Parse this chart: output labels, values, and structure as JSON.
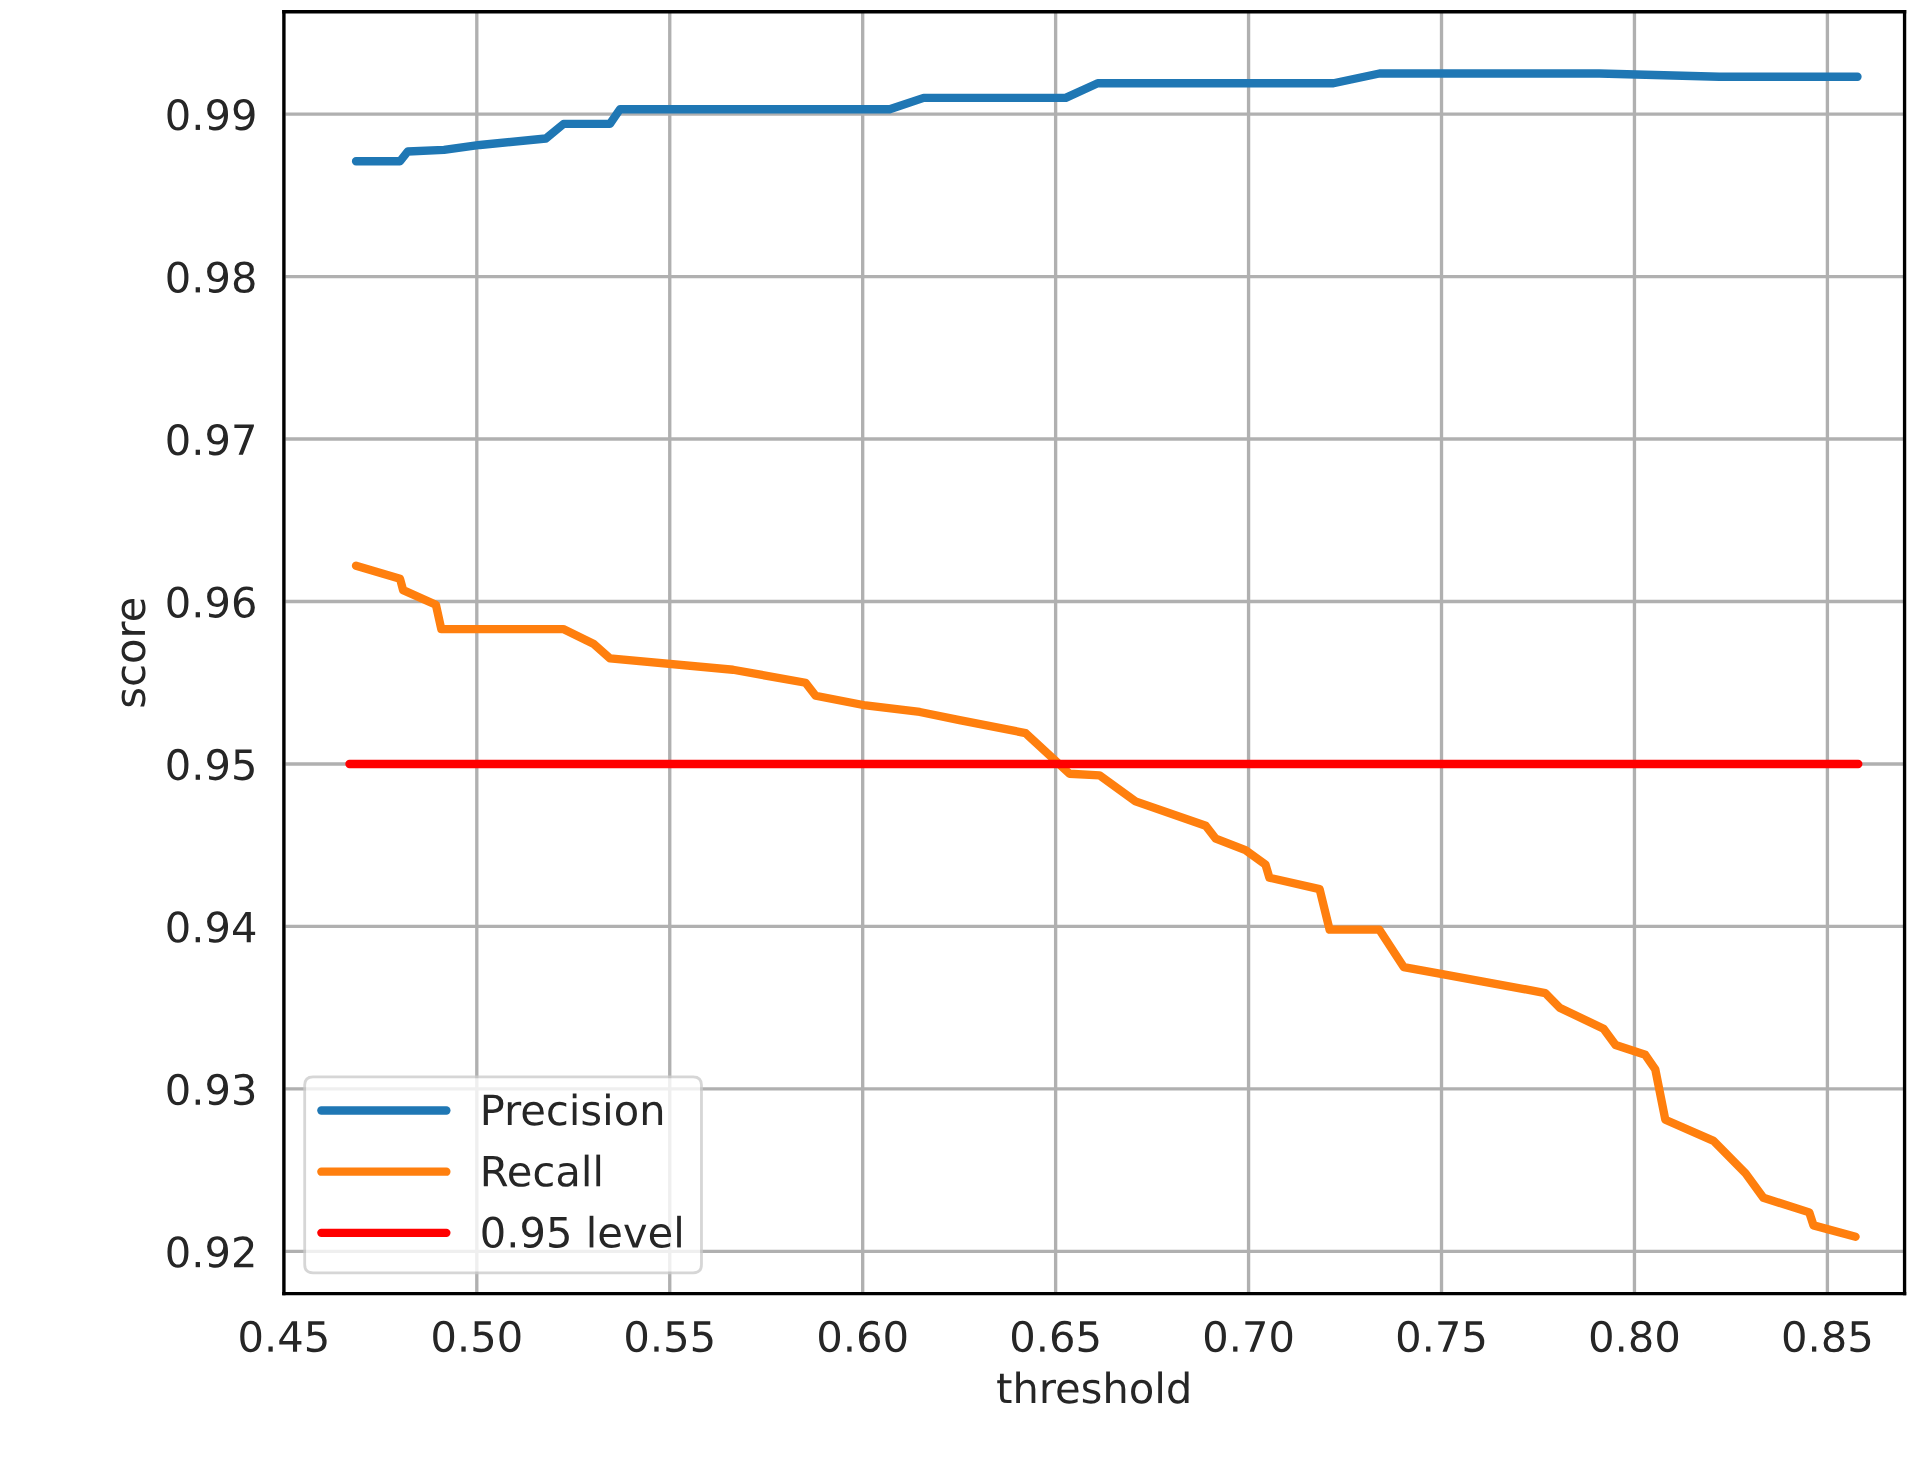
{
  "chart_data": {
    "type": "line",
    "xlabel": "threshold",
    "ylabel": "score",
    "xlim": [
      0.45,
      0.87
    ],
    "ylim": [
      0.9174,
      0.9963
    ],
    "xticks": [
      {
        "value": 0.45,
        "label": "0.45"
      },
      {
        "value": 0.5,
        "label": "0.50"
      },
      {
        "value": 0.55,
        "label": "0.55"
      },
      {
        "value": 0.6,
        "label": "0.60"
      },
      {
        "value": 0.65,
        "label": "0.65"
      },
      {
        "value": 0.7,
        "label": "0.70"
      },
      {
        "value": 0.75,
        "label": "0.75"
      },
      {
        "value": 0.8,
        "label": "0.80"
      },
      {
        "value": 0.85,
        "label": "0.85"
      }
    ],
    "yticks": [
      0.92,
      0.93,
      0.94,
      0.95,
      0.96,
      0.97,
      0.98,
      0.99
    ],
    "grid": true,
    "legend": "bottom left",
    "line_style": "solid",
    "marker": "none",
    "series": [
      {
        "name": "Precision",
        "color": "#1f77b4",
        "x": [
          0.4687,
          0.4801,
          0.4821,
          0.4915,
          0.5008,
          0.5179,
          0.5225,
          0.5345,
          0.5371,
          0.607,
          0.6158,
          0.6526,
          0.6609,
          0.722,
          0.7339,
          0.7909,
          0.822,
          0.8578
        ],
        "values": [
          0.9871,
          0.9871,
          0.9877,
          0.9878,
          0.9881,
          0.9885,
          0.9894,
          0.9894,
          0.9903,
          0.9903,
          0.991,
          0.991,
          0.9919,
          0.9919,
          0.9925,
          0.9925,
          0.9923,
          0.9923
        ]
      },
      {
        "name": "Recall",
        "color": "#ff7f0e",
        "x": [
          0.4687,
          0.4801,
          0.4809,
          0.4894,
          0.4908,
          0.5224,
          0.5302,
          0.5345,
          0.5664,
          0.5852,
          0.5878,
          0.6008,
          0.6148,
          0.6251,
          0.6422,
          0.6536,
          0.6614,
          0.6707,
          0.6889,
          0.6915,
          0.6992,
          0.7044,
          0.7054,
          0.7184,
          0.721,
          0.7339,
          0.7402,
          0.7495,
          0.7769,
          0.7806,
          0.792,
          0.7951,
          0.8028,
          0.8054,
          0.808,
          0.8205,
          0.8288,
          0.8334,
          0.8453,
          0.8464,
          0.8573
        ],
        "values": [
          0.9622,
          0.9614,
          0.9607,
          0.9598,
          0.9583,
          0.9583,
          0.9574,
          0.9565,
          0.9558,
          0.955,
          0.9542,
          0.9536,
          0.9532,
          0.9527,
          0.9519,
          0.9494,
          0.9493,
          0.9477,
          0.9462,
          0.9454,
          0.9447,
          0.9438,
          0.943,
          0.9423,
          0.9398,
          0.9398,
          0.9375,
          0.9371,
          0.9359,
          0.935,
          0.9337,
          0.9327,
          0.9321,
          0.9312,
          0.9281,
          0.9268,
          0.9248,
          0.9233,
          0.9224,
          0.9216,
          0.9209
        ]
      },
      {
        "name": "0.95 level",
        "color": "#ff0000",
        "x": [
          0.467,
          0.858
        ],
        "values": [
          0.95,
          0.95
        ]
      }
    ]
  }
}
